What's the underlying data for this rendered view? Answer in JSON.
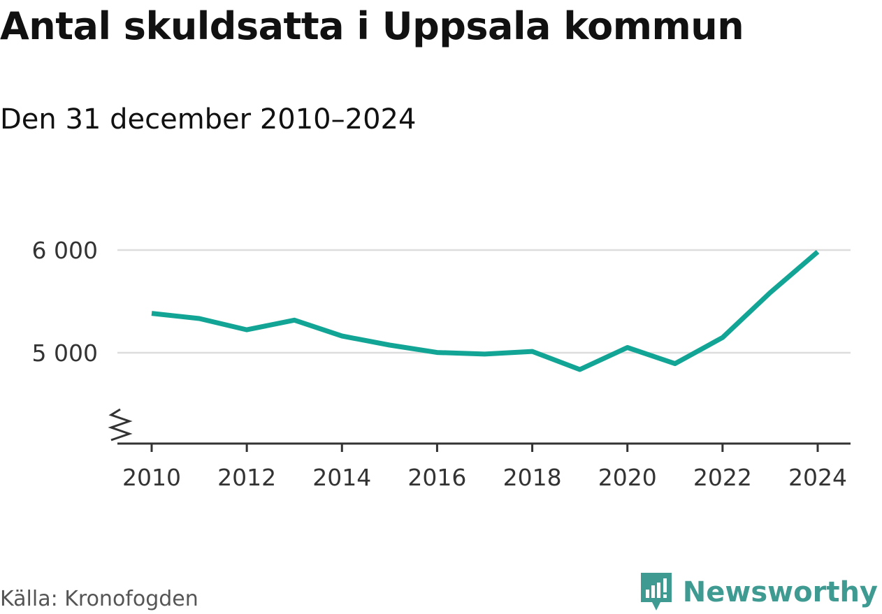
{
  "title": "Antal skuldsatta i Uppsala kommun",
  "subtitle": "Den 31 december 2010–2024",
  "source": "Källa: Kronofogden",
  "brand": {
    "name": "Newsworthy",
    "icon": "newsworthy-logo-icon",
    "color": "#3f9a92"
  },
  "chart_data": {
    "type": "line",
    "title": "Antal skuldsatta i Uppsala kommun",
    "subtitle": "Den 31 december 2010–2024",
    "xlabel": "",
    "ylabel": "",
    "x": [
      2010,
      2011,
      2012,
      2013,
      2014,
      2015,
      2016,
      2017,
      2018,
      2019,
      2020,
      2021,
      2022,
      2023,
      2024
    ],
    "series": [
      {
        "name": "Antal skuldsatta",
        "values": [
          5384,
          5333,
          5224,
          5318,
          5163,
          5075,
          5003,
          4987,
          5013,
          4837,
          5051,
          4894,
          5148,
          5585,
          5983
        ],
        "color": "#12a596"
      }
    ],
    "xticks": [
      "2010",
      "2012",
      "2014",
      "2016",
      "2018",
      "2020",
      "2022",
      "2024"
    ],
    "yticks": [
      {
        "value": 5000,
        "label": "5 000"
      },
      {
        "value": 6000,
        "label": "6 000"
      }
    ],
    "ylim": [
      4100,
      6000
    ],
    "xlim": [
      2010,
      2024
    ],
    "grid": true,
    "axis_break": true
  }
}
